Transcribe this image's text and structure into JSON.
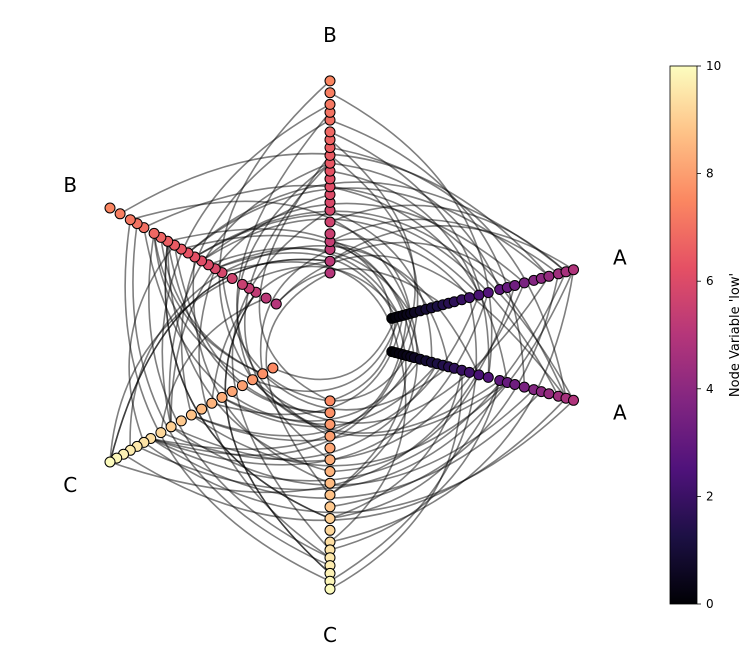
{
  "chart_data": {
    "type": "hive_plot",
    "axes": [
      {
        "label": "A",
        "angle_deg": 15
      },
      {
        "label": "A",
        "angle_deg": -15
      },
      {
        "label": "B",
        "angle_deg": 90
      },
      {
        "label": "B",
        "angle_deg": 150
      },
      {
        "label": "C",
        "angle_deg": 210
      },
      {
        "label": "C",
        "angle_deg": 270
      }
    ],
    "node_variable": "low",
    "colormap": "magma",
    "colorbar": {
      "label": "Node Variable 'low'",
      "range": [
        0,
        10
      ],
      "ticks": [
        "0",
        "2",
        "4",
        "6",
        "8",
        "10"
      ]
    },
    "nodes": {
      "A": [
        0.05,
        0.15,
        0.25,
        0.35,
        0.45,
        0.55,
        0.65,
        0.8,
        0.95,
        1.1,
        1.25,
        1.4,
        1.55,
        1.7,
        1.9,
        2.1,
        2.35,
        2.6,
        2.9,
        3.1,
        3.3,
        3.55,
        3.8,
        4.0,
        4.2,
        4.45,
        4.65,
        4.85
      ],
      "B": [
        5.0,
        5.15,
        5.3,
        5.4,
        5.5,
        5.65,
        5.8,
        5.9,
        6.0,
        6.1,
        6.2,
        6.3,
        6.4,
        6.5,
        6.6,
        6.7,
        6.8,
        6.95,
        7.05,
        7.15,
        7.3,
        7.45
      ],
      "C": [
        7.55,
        7.7,
        7.85,
        8.0,
        8.15,
        8.3,
        8.45,
        8.6,
        8.75,
        8.9,
        9.05,
        9.2,
        9.35,
        9.45,
        9.55,
        9.65,
        9.75,
        9.85,
        9.95
      ]
    },
    "edge_count": 110
  }
}
